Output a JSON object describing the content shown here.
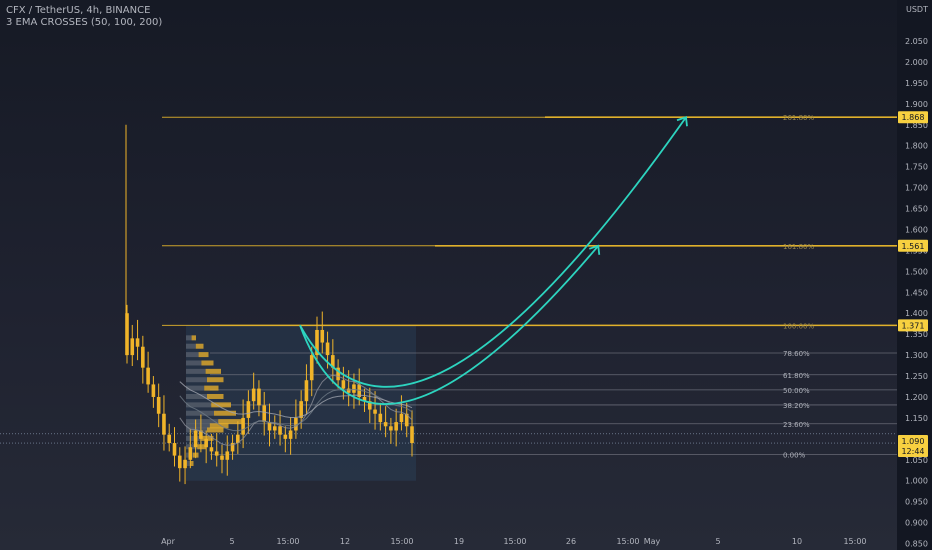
{
  "header": {
    "symbol_line": "CFX / TetherUS, 4h, BINANCE",
    "indicator_line": "3 EMA CROSSES (50, 100, 200)"
  },
  "colors": {
    "background": "#1b1e29",
    "candle": "#f0b429",
    "fib": "#e0b12b",
    "fib_inner": "#787b86",
    "projection": "#2dd4bf",
    "price_tag": "#f7d040"
  },
  "chart_data": {
    "type": "candlestick",
    "title": "CFX / TetherUS, 4h, BINANCE",
    "indicator": "3 EMA CROSSES (50, 100, 200)",
    "y_axis_label": "USDT",
    "ylim": [
      0.84,
      2.06
    ],
    "y_ticks": [
      "2.050",
      "2.000",
      "1.950",
      "1.900",
      "1.850",
      "1.800",
      "1.750",
      "1.700",
      "1.650",
      "1.600",
      "1.550",
      "1.500",
      "1.450",
      "1.400",
      "1.350",
      "1.300",
      "1.250",
      "1.200",
      "1.150",
      "1.100",
      "1.050",
      "1.000",
      "0.950",
      "0.900",
      "0.850"
    ],
    "x_ticks": [
      "Apr",
      "5",
      "15:00",
      "12",
      "15:00",
      "19",
      "15:00",
      "26",
      "15:00",
      "May",
      "5",
      "10",
      "15:00"
    ],
    "fib_levels": [
      {
        "label": "261.80%",
        "value": 1.868,
        "tag": "1.868"
      },
      {
        "label": "161.80%",
        "value": 1.561,
        "tag": "1.561"
      },
      {
        "label": "100.00%",
        "value": 1.371,
        "tag": "1.371"
      },
      {
        "label": "78.60%",
        "value": 1.305
      },
      {
        "label": "61.80%",
        "value": 1.253
      },
      {
        "label": "50.00%",
        "value": 1.217
      },
      {
        "label": "38.20%",
        "value": 1.181
      },
      {
        "label": "23.60%",
        "value": 1.136
      },
      {
        "label": "0.00%",
        "value": 1.063
      }
    ],
    "current_price": "1.090",
    "countdown": "12:44",
    "close_series": [
      1.3,
      1.34,
      1.32,
      1.27,
      1.23,
      1.2,
      1.16,
      1.11,
      1.09,
      1.06,
      1.03,
      1.05,
      1.08,
      1.12,
      1.1,
      1.08,
      1.07,
      1.06,
      1.05,
      1.07,
      1.09,
      1.11,
      1.15,
      1.19,
      1.22,
      1.18,
      1.14,
      1.12,
      1.13,
      1.11,
      1.1,
      1.12,
      1.15,
      1.19,
      1.24,
      1.3,
      1.36,
      1.33,
      1.3,
      1.27,
      1.24,
      1.22,
      1.21,
      1.23,
      1.2,
      1.19,
      1.17,
      1.16,
      1.14,
      1.13,
      1.12,
      1.14,
      1.16,
      1.13,
      1.09
    ],
    "projection_paths": [
      {
        "name": "path-1",
        "points": [
          [
            1.3,
            1.371
          ],
          [
            1.7,
            1.048
          ],
          [
            3.0,
            1.561
          ]
        ]
      },
      {
        "name": "path-2",
        "points": [
          [
            1.3,
            1.371
          ],
          [
            1.9,
            1.048
          ],
          [
            3.5,
            1.868
          ]
        ]
      }
    ]
  }
}
